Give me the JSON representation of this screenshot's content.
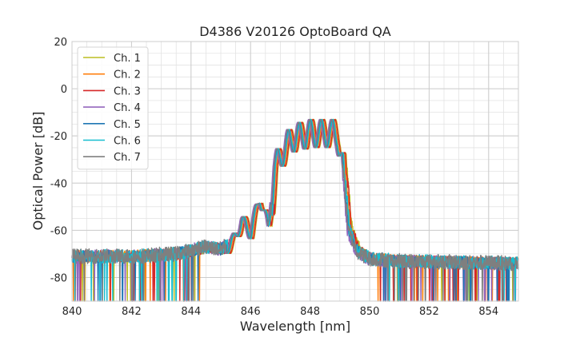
{
  "chart_data": {
    "type": "line",
    "title": "D4386 V20126 OptoBoard QA",
    "xlabel": "Wavelength [nm]",
    "ylabel": "Optical Power [dB]",
    "xlim": [
      840,
      855
    ],
    "ylim": [
      -90,
      20
    ],
    "xticks": [
      840,
      842,
      844,
      846,
      848,
      850,
      852,
      854
    ],
    "yticks": [
      -80,
      -60,
      -40,
      -20,
      0,
      20
    ],
    "x_minor_step": 0.5,
    "y_minor_step": 5,
    "grid": true,
    "legend_position": "upper-left",
    "series": [
      {
        "name": "Ch. 1",
        "color": "#bcbd22",
        "shift": 0.12,
        "noise": 3.0
      },
      {
        "name": "Ch. 2",
        "color": "#ff7f0e",
        "shift": 0.06,
        "noise": 3.2
      },
      {
        "name": "Ch. 3",
        "color": "#d62728",
        "shift": 0.1,
        "noise": 3.0
      },
      {
        "name": "Ch. 4",
        "color": "#9467bd",
        "shift": -0.05,
        "noise": 3.4
      },
      {
        "name": "Ch. 5",
        "color": "#1f77b4",
        "shift": 0.0,
        "noise": 3.2
      },
      {
        "name": "Ch. 6",
        "color": "#17becf",
        "shift": 0.03,
        "noise": 3.6
      },
      {
        "name": "Ch. 7",
        "color": "#7f7f7f",
        "shift": -0.02,
        "noise": 4.0
      }
    ],
    "envelope": {
      "x": [
        840.0,
        842.0,
        843.5,
        844.5,
        845.0,
        845.4,
        845.7,
        846.0,
        846.3,
        846.6,
        846.8,
        847.1,
        847.4,
        847.7,
        848.0,
        848.3,
        848.6,
        848.9,
        849.1,
        849.3,
        849.6,
        850.0,
        851.0,
        855.0
      ],
      "y": [
        -71,
        -71,
        -70,
        -67,
        -68,
        -64,
        -55,
        -60,
        -45,
        -58,
        -30,
        -22,
        -17,
        -16,
        -15,
        -15,
        -15,
        -15,
        -30,
        -60,
        -69,
        -72,
        -73,
        -74
      ]
    },
    "ripple_period": 0.37,
    "ripple_phase_x": 848.0
  }
}
